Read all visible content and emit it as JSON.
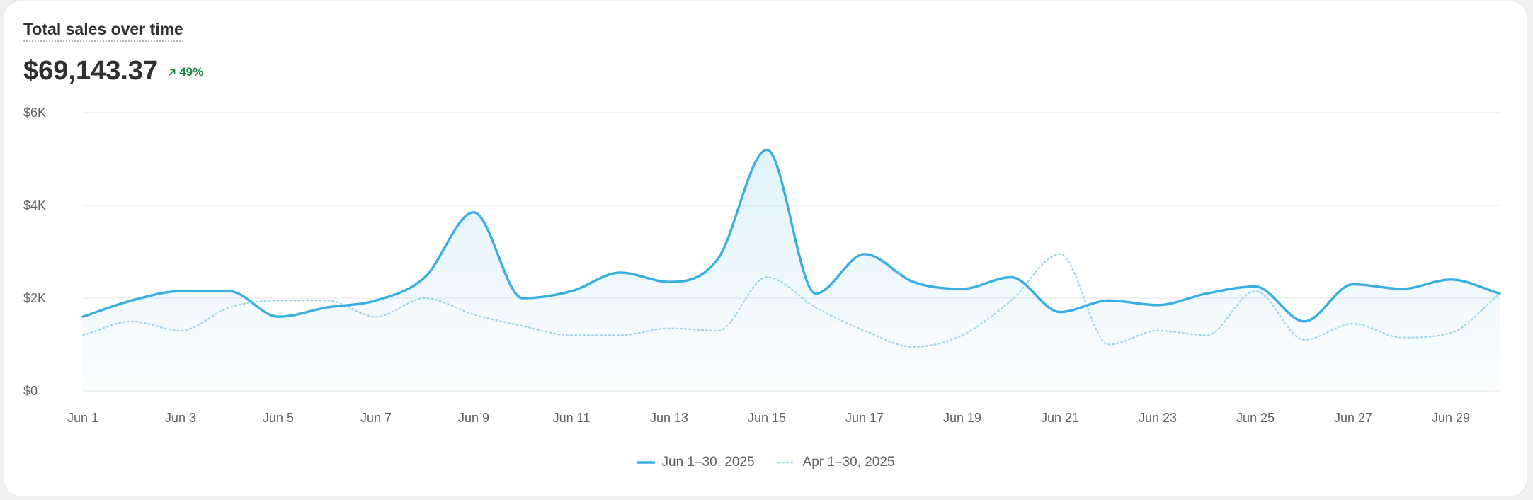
{
  "card": {
    "title": "Total sales over time",
    "total": "$69,143.37",
    "change": "49%"
  },
  "colors": {
    "primary": "#3aaee0",
    "comparison": "#9fd3ea",
    "change_positive": "#1a8a4f"
  },
  "icons": {
    "change": "arrow-up-right-icon"
  },
  "chart_data": {
    "type": "area",
    "y_ticks": [
      "$0",
      "$2K",
      "$4K",
      "$6K"
    ],
    "ylim": [
      0,
      6000
    ],
    "x_ticks": [
      "Jun 1",
      "Jun 3",
      "Jun 5",
      "Jun 7",
      "Jun 9",
      "Jun 11",
      "Jun 13",
      "Jun 15",
      "Jun 17",
      "Jun 19",
      "Jun 21",
      "Jun 23",
      "Jun 25",
      "Jun 27",
      "Jun 29"
    ],
    "x": [
      1,
      2,
      3,
      4,
      5,
      6,
      7,
      8,
      9,
      10,
      11,
      12,
      13,
      14,
      15,
      16,
      17,
      18,
      19,
      20,
      21,
      22,
      23,
      24,
      25,
      26,
      27,
      28,
      29,
      30
    ],
    "grid": true,
    "legend_position": "bottom-center",
    "series": [
      {
        "name": "Jun 1–30, 2025",
        "style": "solid",
        "values": [
          1600,
          1950,
          2150,
          2150,
          1600,
          1800,
          1950,
          2450,
          3850,
          2000,
          2150,
          2550,
          2350,
          2850,
          5200,
          2100,
          2950,
          2350,
          2200,
          2450,
          1700,
          1950,
          1850,
          2100,
          2250,
          1500,
          2300,
          2200,
          2400,
          2100
        ]
      },
      {
        "name": "Apr 1–30, 2025",
        "style": "dotted",
        "values": [
          1200,
          1500,
          1300,
          1800,
          1950,
          1950,
          1600,
          2000,
          1650,
          1400,
          1200,
          1200,
          1350,
          1300,
          2450,
          1800,
          1300,
          950,
          1200,
          1950,
          2950,
          1000,
          1300,
          1200,
          2150,
          1100,
          1450,
          1150,
          1250,
          2100
        ]
      }
    ]
  }
}
